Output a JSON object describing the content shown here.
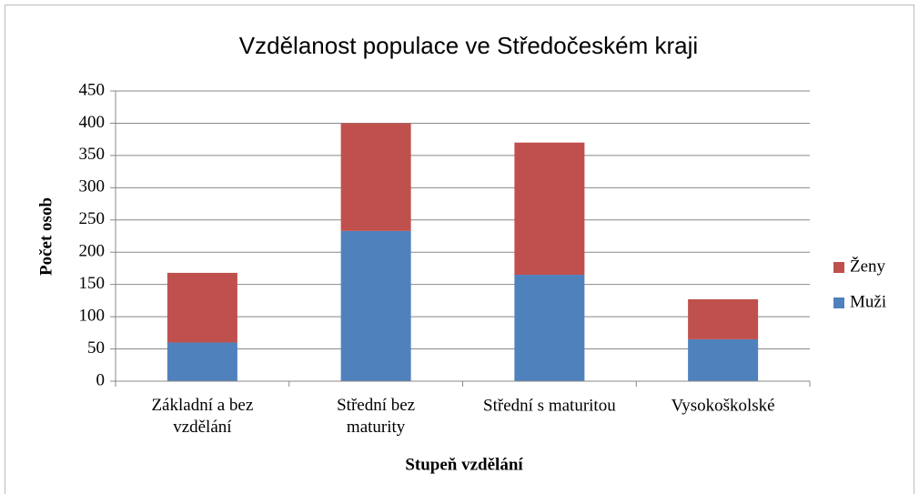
{
  "chart_data": {
    "type": "stacked_bar",
    "title": "Vzdělanost populace ve Středočeském kraji",
    "xlabel": "Stupeň vzdělání",
    "ylabel": "Počet osob",
    "categories": [
      "Základní a bez\nvzdělání",
      "Střední bez\nmaturity",
      "Střední s maturitou",
      "Vysokoškolské"
    ],
    "series": [
      {
        "name": "Muži",
        "color": "#4f81bd",
        "values": [
          60,
          233,
          165,
          65
        ]
      },
      {
        "name": "Ženy",
        "color": "#c0504d",
        "values": [
          108,
          167,
          205,
          62
        ]
      }
    ],
    "ylim": [
      0,
      450
    ],
    "yticks": [
      0,
      50,
      100,
      150,
      200,
      250,
      300,
      350,
      400,
      450
    ],
    "grid": true,
    "legend": "right"
  }
}
